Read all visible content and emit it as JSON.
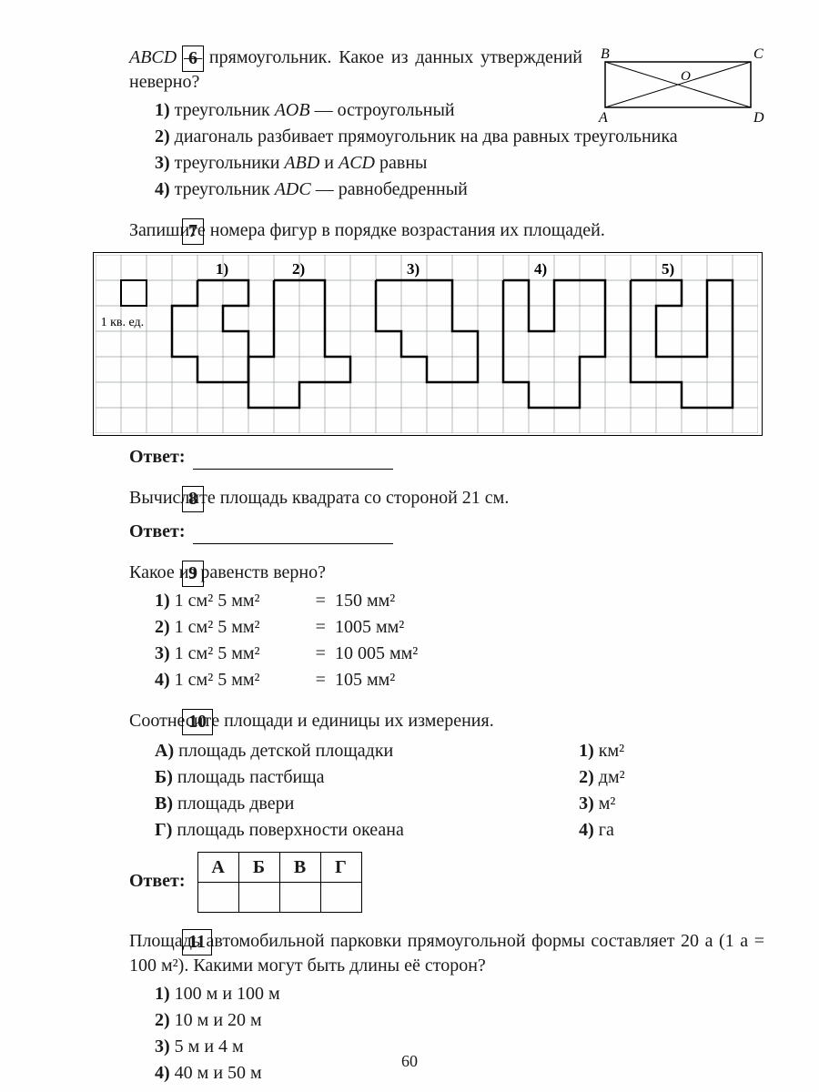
{
  "page_number": "60",
  "q6": {
    "num": "6",
    "text_a": "ABCD",
    "text_b": " — прямоугольник. Какое из данных утверждений неверно?",
    "opts": [
      {
        "n": "1)",
        "t": "треугольник <span class='italic'>AOB</span> — остроугольный"
      },
      {
        "n": "2)",
        "t": "диагональ разбивает прямоугольник на два равных треугольника"
      },
      {
        "n": "3)",
        "t": "треугольники <span class='italic'>ABD</span> и <span class='italic'>ACD</span> равны"
      },
      {
        "n": "4)",
        "t": "треугольник <span class='italic'>ADC</span> — равнобедренный"
      }
    ],
    "diagram": {
      "B": "B",
      "C": "C",
      "A": "A",
      "D": "D",
      "O": "O"
    }
  },
  "q7": {
    "num": "7",
    "text": "Запишите номера фигур в порядке возрастания их площадей.",
    "labels": [
      "1)",
      "2)",
      "3)",
      "4)",
      "5)"
    ],
    "unit_label": "1 кв. ед.",
    "answer_label": "Ответ:",
    "grid": {
      "cell": 28,
      "cols": 26,
      "rows": 7,
      "grid_color": "#9aa0a0",
      "line_color": "#000000",
      "line_width": 2.5
    }
  },
  "q8": {
    "num": "8",
    "text": "Вычислите площадь квадрата со стороной 21 см.",
    "answer_label": "Ответ:"
  },
  "q9": {
    "num": "9",
    "text": "Какое из равенств верно?",
    "rows": [
      {
        "n": "1)",
        "l": "1 см² 5 мм²",
        "r": "150 мм²"
      },
      {
        "n": "2)",
        "l": "1 см² 5 мм²",
        "r": "1005 мм²"
      },
      {
        "n": "3)",
        "l": "1 см² 5 мм²",
        "r": "10 005 мм²"
      },
      {
        "n": "4)",
        "l": "1 см² 5 мм²",
        "r": "105 мм²"
      }
    ]
  },
  "q10": {
    "num": "10",
    "text": "Соотнесите площади и единицы их измерения.",
    "left": [
      {
        "k": "А)",
        "t": "площадь детской площадки"
      },
      {
        "k": "Б)",
        "t": "площадь пастбища"
      },
      {
        "k": "В)",
        "t": "площадь двери"
      },
      {
        "k": "Г)",
        "t": "площадь поверхности океана"
      }
    ],
    "right": [
      {
        "k": "1)",
        "t": "км²"
      },
      {
        "k": "2)",
        "t": "дм²"
      },
      {
        "k": "3)",
        "t": "м²"
      },
      {
        "k": "4)",
        "t": "га"
      }
    ],
    "answer_label": "Ответ:",
    "headers": [
      "А",
      "Б",
      "В",
      "Г"
    ]
  },
  "q11": {
    "num": "11",
    "text": "Площадь автомобильной парковки прямоугольной формы составляет 20 а (1 а = 100 м²). Какими могут быть длины её сторон?",
    "opts": [
      {
        "n": "1)",
        "t": "100 м и 100 м"
      },
      {
        "n": "2)",
        "t": "10 м и 20 м"
      },
      {
        "n": "3)",
        "t": "5 м и 4 м"
      },
      {
        "n": "4)",
        "t": "40 м и 50 м"
      }
    ]
  }
}
